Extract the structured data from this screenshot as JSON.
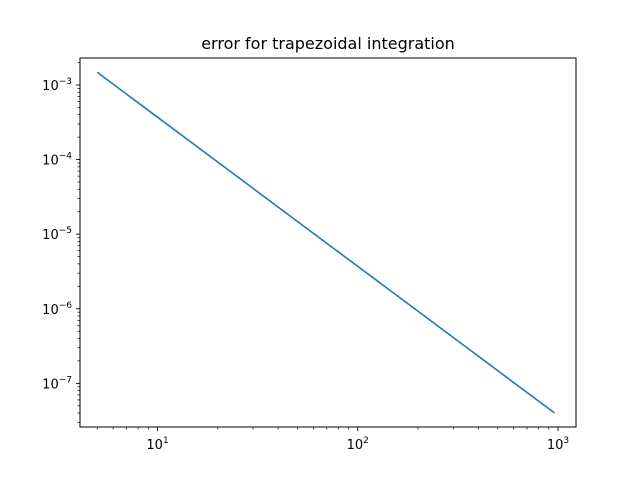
{
  "chart_data": {
    "type": "line",
    "title": "error for trapezoidal integration",
    "xlabel": "",
    "ylabel": "",
    "xscale": "log",
    "yscale": "log",
    "xlim": [
      4.1,
      1230
    ],
    "ylim": [
      2.6e-08,
      0.0023
    ],
    "grid": false,
    "x_ticks": [
      {
        "value": 10,
        "base": "10",
        "exp": "1"
      },
      {
        "value": 100,
        "base": "10",
        "exp": "2"
      },
      {
        "value": 1000,
        "base": "10",
        "exp": "3"
      }
    ],
    "y_ticks": [
      {
        "value": 0.001,
        "base": "10",
        "exp": "−3"
      },
      {
        "value": 0.0001,
        "base": "10",
        "exp": "−4"
      },
      {
        "value": 1e-05,
        "base": "10",
        "exp": "−5"
      },
      {
        "value": 1e-06,
        "base": "10",
        "exp": "−6"
      },
      {
        "value": 1e-07,
        "base": "10",
        "exp": "−7"
      }
    ],
    "series": [
      {
        "color": "#1f77b4",
        "x": [
          5,
          10,
          20,
          50,
          100,
          200,
          500,
          960
        ],
        "y": [
          0.00148,
          0.00037,
          9.25e-05,
          1.48e-05,
          3.7e-06,
          9.25e-07,
          1.48e-07,
          4.02e-08
        ]
      }
    ]
  }
}
